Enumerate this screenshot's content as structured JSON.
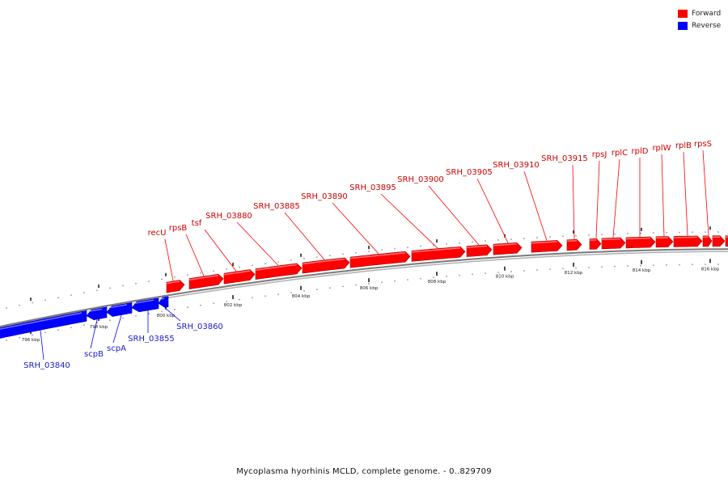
{
  "legend": [
    {
      "label": "Forward",
      "color": "#ff0000"
    },
    {
      "label": "Reverse",
      "color": "#0000ff"
    }
  ],
  "caption": "Mycoplasma hyorhinis MCLD, complete genome. - 0..829709",
  "colors": {
    "forward": "#ff0000",
    "reverse": "#0000ff",
    "backbone": "#808080",
    "label_forward": "#cc0000",
    "label_reverse": "#1a1acc"
  },
  "tick_labels": [
    "796 kbp",
    "798 kbp",
    "800 kbp",
    "802 kbp",
    "804 kbp",
    "806 kbp",
    "808 kbp",
    "810 kbp",
    "812 kbp",
    "814 kbp",
    "816 kbp"
  ],
  "genes_forward": [
    "recU",
    "rpsB",
    "tsf",
    "SRH_03880",
    "SRH_03885",
    "SRH_03890",
    "SRH_03895",
    "SRH_03900",
    "SRH_03905",
    "SRH_03910",
    "SRH_03915",
    "rpsJ",
    "rplC",
    "rplD",
    "rplW",
    "rplB",
    "rpsS"
  ],
  "genes_reverse": [
    "SRH_03840",
    "scpB",
    "scpA",
    "SRH_03855",
    "SRH_03860"
  ]
}
